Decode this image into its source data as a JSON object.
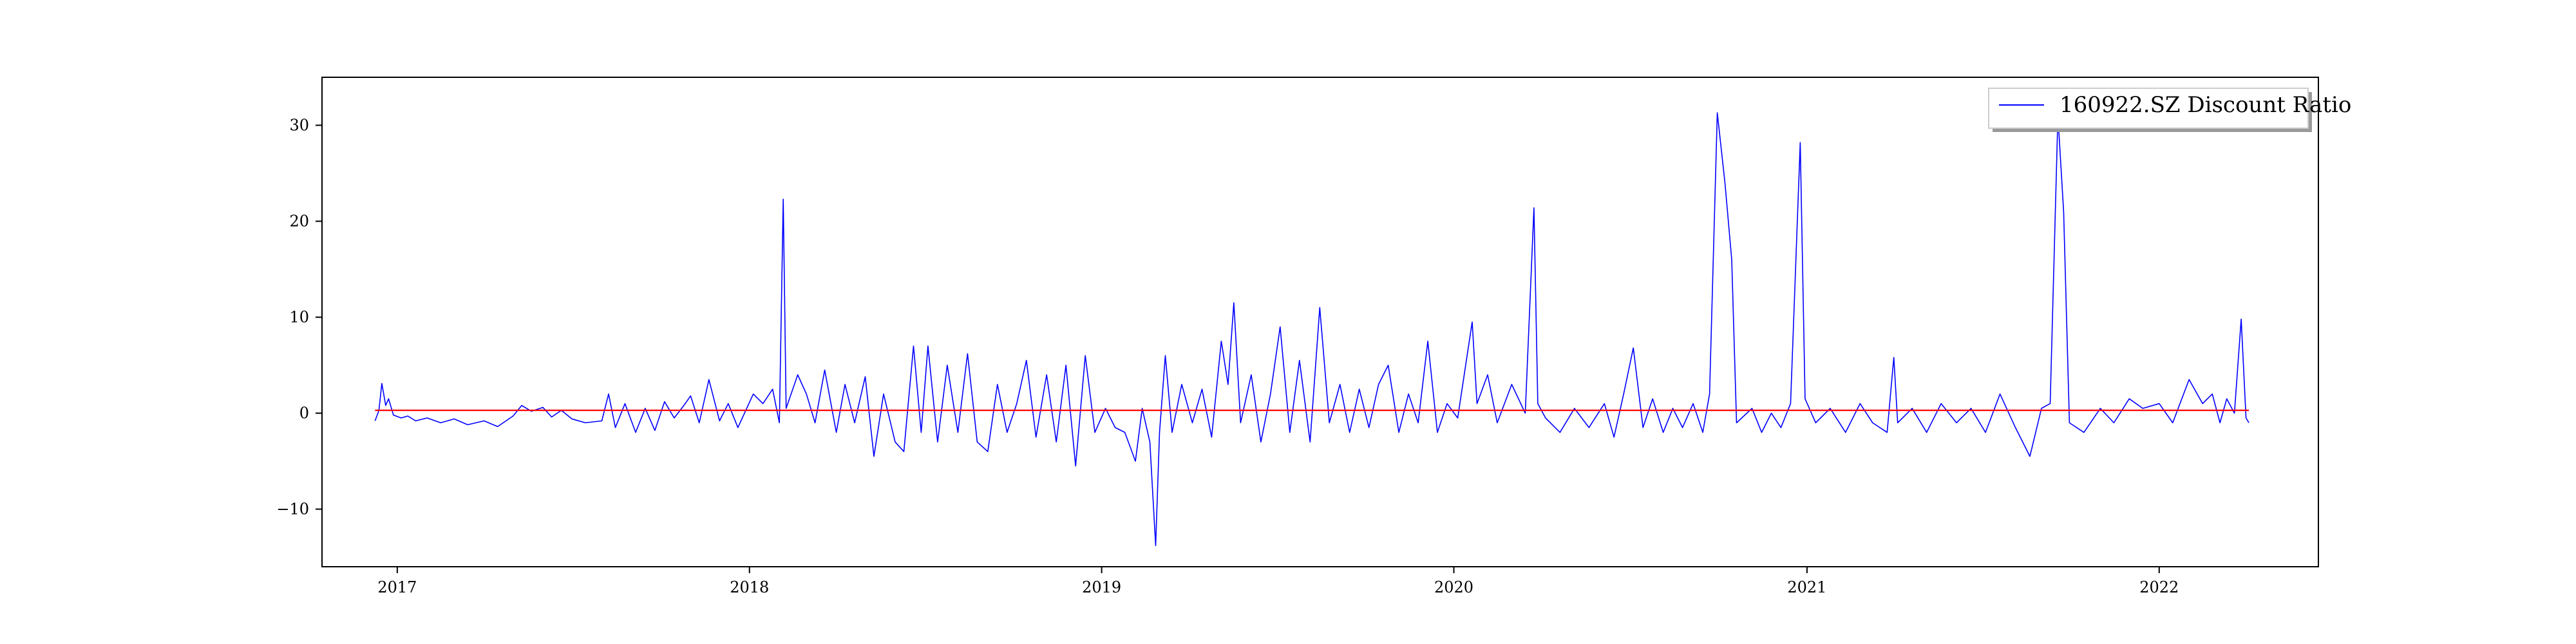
{
  "chart_data": {
    "type": "line",
    "title": "",
    "xlabel": "",
    "ylabel": "",
    "x_range": [
      "2016-10-15",
      "2022-06-15"
    ],
    "ylim": [
      -16,
      35
    ],
    "x_ticks": [
      "2017-01-01",
      "2018-01-01",
      "2019-01-01",
      "2020-01-01",
      "2021-01-01",
      "2022-01-01"
    ],
    "x_tick_labels": [
      "2017",
      "2018",
      "2019",
      "2020",
      "2021",
      "2022"
    ],
    "y_ticks": [
      -10,
      0,
      10,
      20,
      30
    ],
    "y_tick_labels": [
      "−10",
      "0",
      "10",
      "20",
      "30"
    ],
    "grid": false,
    "legend": {
      "position": "top-right",
      "entries": [
        "160922.SZ Discount Ratio"
      ]
    },
    "series": [
      {
        "name": "160922.SZ Discount Ratio",
        "color": "#0000ff",
        "points": [
          [
            "2016-12-09",
            -0.8
          ],
          [
            "2016-12-13",
            0.3
          ],
          [
            "2016-12-16",
            3.1
          ],
          [
            "2016-12-20",
            0.8
          ],
          [
            "2016-12-23",
            1.5
          ],
          [
            "2016-12-28",
            -0.2
          ],
          [
            "2017-01-05",
            -0.5
          ],
          [
            "2017-01-12",
            -0.3
          ],
          [
            "2017-01-20",
            -0.8
          ],
          [
            "2017-02-01",
            -0.5
          ],
          [
            "2017-02-15",
            -1.0
          ],
          [
            "2017-03-01",
            -0.6
          ],
          [
            "2017-03-15",
            -1.2
          ],
          [
            "2017-04-01",
            -0.8
          ],
          [
            "2017-04-15",
            -1.4
          ],
          [
            "2017-05-01",
            -0.3
          ],
          [
            "2017-05-10",
            0.8
          ],
          [
            "2017-05-20",
            0.2
          ],
          [
            "2017-06-01",
            0.6
          ],
          [
            "2017-06-10",
            -0.4
          ],
          [
            "2017-06-20",
            0.3
          ],
          [
            "2017-07-01",
            -0.6
          ],
          [
            "2017-07-15",
            -1.0
          ],
          [
            "2017-08-01",
            -0.8
          ],
          [
            "2017-08-08",
            2.0
          ],
          [
            "2017-08-15",
            -1.5
          ],
          [
            "2017-08-25",
            1.0
          ],
          [
            "2017-09-05",
            -2.0
          ],
          [
            "2017-09-15",
            0.5
          ],
          [
            "2017-09-25",
            -1.8
          ],
          [
            "2017-10-05",
            1.2
          ],
          [
            "2017-10-15",
            -0.5
          ],
          [
            "2017-10-25",
            0.8
          ],
          [
            "2017-11-01",
            1.8
          ],
          [
            "2017-11-10",
            -1.0
          ],
          [
            "2017-11-20",
            3.5
          ],
          [
            "2017-12-01",
            -0.8
          ],
          [
            "2017-12-10",
            1.0
          ],
          [
            "2017-12-20",
            -1.5
          ],
          [
            "2018-01-05",
            2.0
          ],
          [
            "2018-01-15",
            1.0
          ],
          [
            "2018-01-25",
            2.5
          ],
          [
            "2018-02-01",
            -1.0
          ],
          [
            "2018-02-05",
            22.3
          ],
          [
            "2018-02-08",
            0.5
          ],
          [
            "2018-02-20",
            4.0
          ],
          [
            "2018-03-01",
            2.0
          ],
          [
            "2018-03-10",
            -1.0
          ],
          [
            "2018-03-20",
            4.5
          ],
          [
            "2018-04-01",
            -2.0
          ],
          [
            "2018-04-10",
            3.0
          ],
          [
            "2018-04-20",
            -1.0
          ],
          [
            "2018-05-01",
            3.8
          ],
          [
            "2018-05-10",
            -4.5
          ],
          [
            "2018-05-20",
            2.0
          ],
          [
            "2018-06-01",
            -3.0
          ],
          [
            "2018-06-10",
            -4.0
          ],
          [
            "2018-06-20",
            7.0
          ],
          [
            "2018-06-28",
            -2.0
          ],
          [
            "2018-07-05",
            7.0
          ],
          [
            "2018-07-15",
            -3.0
          ],
          [
            "2018-07-25",
            5.0
          ],
          [
            "2018-08-05",
            -2.0
          ],
          [
            "2018-08-15",
            6.2
          ],
          [
            "2018-08-25",
            -3.0
          ],
          [
            "2018-09-05",
            -4.0
          ],
          [
            "2018-09-15",
            3.0
          ],
          [
            "2018-09-25",
            -2.0
          ],
          [
            "2018-10-05",
            1.0
          ],
          [
            "2018-10-15",
            5.5
          ],
          [
            "2018-10-25",
            -2.5
          ],
          [
            "2018-11-05",
            4.0
          ],
          [
            "2018-11-15",
            -3.0
          ],
          [
            "2018-11-25",
            5.0
          ],
          [
            "2018-12-05",
            -5.5
          ],
          [
            "2018-12-15",
            6.0
          ],
          [
            "2018-12-25",
            -2.0
          ],
          [
            "2019-01-05",
            0.5
          ],
          [
            "2019-01-15",
            -1.5
          ],
          [
            "2019-01-25",
            -2.0
          ],
          [
            "2019-02-05",
            -5.0
          ],
          [
            "2019-02-12",
            0.5
          ],
          [
            "2019-02-20",
            -3.0
          ],
          [
            "2019-02-26",
            -13.8
          ],
          [
            "2019-03-02",
            -2.0
          ],
          [
            "2019-03-08",
            6.0
          ],
          [
            "2019-03-15",
            -2.0
          ],
          [
            "2019-03-25",
            3.0
          ],
          [
            "2019-04-05",
            -1.0
          ],
          [
            "2019-04-15",
            2.5
          ],
          [
            "2019-04-25",
            -2.5
          ],
          [
            "2019-05-05",
            7.5
          ],
          [
            "2019-05-12",
            3.0
          ],
          [
            "2019-05-18",
            11.5
          ],
          [
            "2019-05-25",
            -1.0
          ],
          [
            "2019-06-05",
            4.0
          ],
          [
            "2019-06-15",
            -3.0
          ],
          [
            "2019-06-25",
            2.0
          ],
          [
            "2019-07-05",
            9.0
          ],
          [
            "2019-07-15",
            -2.0
          ],
          [
            "2019-07-25",
            5.5
          ],
          [
            "2019-08-05",
            -3.0
          ],
          [
            "2019-08-15",
            11.0
          ],
          [
            "2019-08-25",
            -1.0
          ],
          [
            "2019-09-05",
            3.0
          ],
          [
            "2019-09-15",
            -2.0
          ],
          [
            "2019-09-25",
            2.5
          ],
          [
            "2019-10-05",
            -1.5
          ],
          [
            "2019-10-15",
            3.0
          ],
          [
            "2019-10-25",
            5.0
          ],
          [
            "2019-11-05",
            -2.0
          ],
          [
            "2019-11-15",
            2.0
          ],
          [
            "2019-11-25",
            -1.0
          ],
          [
            "2019-12-05",
            7.5
          ],
          [
            "2019-12-15",
            -2.0
          ],
          [
            "2019-12-25",
            1.0
          ],
          [
            "2020-01-05",
            -0.5
          ],
          [
            "2020-01-20",
            9.5
          ],
          [
            "2020-01-25",
            1.0
          ],
          [
            "2020-02-05",
            4.0
          ],
          [
            "2020-02-15",
            -1.0
          ],
          [
            "2020-03-01",
            3.0
          ],
          [
            "2020-03-15",
            0.0
          ],
          [
            "2020-03-24",
            21.4
          ],
          [
            "2020-03-28",
            1.0
          ],
          [
            "2020-04-05",
            -0.5
          ],
          [
            "2020-04-20",
            -2.0
          ],
          [
            "2020-05-05",
            0.5
          ],
          [
            "2020-05-20",
            -1.5
          ],
          [
            "2020-06-05",
            1.0
          ],
          [
            "2020-06-15",
            -2.5
          ],
          [
            "2020-06-25",
            2.0
          ],
          [
            "2020-07-05",
            6.8
          ],
          [
            "2020-07-15",
            -1.5
          ],
          [
            "2020-07-25",
            1.5
          ],
          [
            "2020-08-05",
            -2.0
          ],
          [
            "2020-08-15",
            0.5
          ],
          [
            "2020-08-25",
            -1.5
          ],
          [
            "2020-09-05",
            1.0
          ],
          [
            "2020-09-15",
            -2.0
          ],
          [
            "2020-09-22",
            2.0
          ],
          [
            "2020-09-30",
            31.3
          ],
          [
            "2020-10-08",
            24.0
          ],
          [
            "2020-10-15",
            16.0
          ],
          [
            "2020-10-20",
            -1.0
          ],
          [
            "2020-11-05",
            0.5
          ],
          [
            "2020-11-15",
            -2.0
          ],
          [
            "2020-11-25",
            0.0
          ],
          [
            "2020-12-05",
            -1.5
          ],
          [
            "2020-12-15",
            1.0
          ],
          [
            "2020-12-25",
            28.2
          ],
          [
            "2020-12-30",
            1.5
          ],
          [
            "2021-01-10",
            -1.0
          ],
          [
            "2021-01-25",
            0.5
          ],
          [
            "2021-02-10",
            -2.0
          ],
          [
            "2021-02-25",
            1.0
          ],
          [
            "2021-03-10",
            -1.0
          ],
          [
            "2021-03-25",
            -2.0
          ],
          [
            "2021-04-01",
            5.8
          ],
          [
            "2021-04-05",
            -1.0
          ],
          [
            "2021-04-20",
            0.5
          ],
          [
            "2021-05-05",
            -2.0
          ],
          [
            "2021-05-20",
            1.0
          ],
          [
            "2021-06-05",
            -1.0
          ],
          [
            "2021-06-20",
            0.5
          ],
          [
            "2021-07-05",
            -2.0
          ],
          [
            "2021-07-20",
            2.0
          ],
          [
            "2021-08-05",
            -1.5
          ],
          [
            "2021-08-20",
            -4.5
          ],
          [
            "2021-09-01",
            0.5
          ],
          [
            "2021-09-10",
            1.0
          ],
          [
            "2021-09-18",
            31.0
          ],
          [
            "2021-09-24",
            21.0
          ],
          [
            "2021-09-30",
            -1.0
          ],
          [
            "2021-10-15",
            -2.0
          ],
          [
            "2021-11-01",
            0.5
          ],
          [
            "2021-11-15",
            -1.0
          ],
          [
            "2021-12-01",
            1.5
          ],
          [
            "2021-12-15",
            0.5
          ],
          [
            "2022-01-01",
            1.0
          ],
          [
            "2022-01-15",
            -1.0
          ],
          [
            "2022-02-01",
            3.5
          ],
          [
            "2022-02-15",
            1.0
          ],
          [
            "2022-02-25",
            2.0
          ],
          [
            "2022-03-05",
            -1.0
          ],
          [
            "2022-03-12",
            1.5
          ],
          [
            "2022-03-20",
            0.0
          ],
          [
            "2022-03-27",
            9.8
          ],
          [
            "2022-04-01",
            -0.5
          ],
          [
            "2022-04-04",
            -1.0
          ]
        ]
      },
      {
        "name": "",
        "color": "#ff0000",
        "points": [
          [
            "2016-12-09",
            0.3
          ],
          [
            "2022-04-04",
            0.3
          ]
        ]
      }
    ]
  }
}
